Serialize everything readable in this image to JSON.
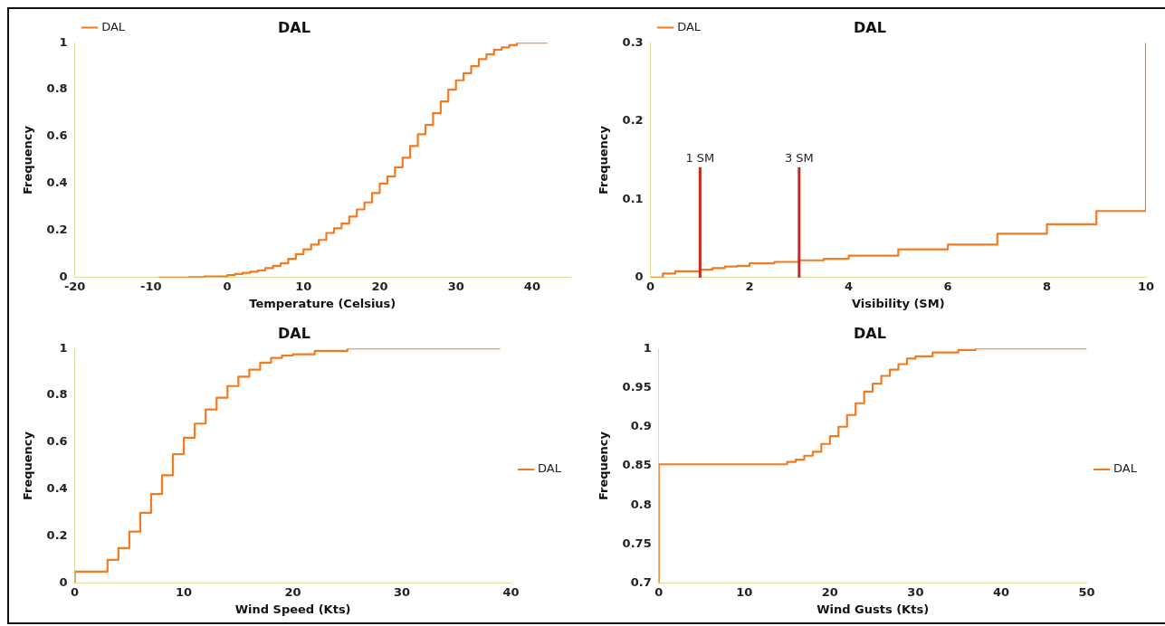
{
  "chart_data": [
    {
      "type": "step",
      "title": "DAL",
      "xlabel": "Temperature (Celsius)",
      "ylabel": "Frequency",
      "xlim": [
        -20,
        45
      ],
      "xticks": [
        -20,
        -10,
        0,
        10,
        20,
        30,
        40
      ],
      "ylim": [
        0,
        1
      ],
      "yticks": [
        0,
        0.2,
        0.4,
        0.6,
        0.8,
        1
      ],
      "legend": "top left",
      "series": [
        {
          "name": "DAL",
          "color": "#f47a20",
          "x": [
            -9,
            -5,
            -3,
            0,
            1,
            2,
            3,
            4,
            5,
            6,
            7,
            8,
            9,
            10,
            11,
            12,
            13,
            14,
            15,
            16,
            17,
            18,
            19,
            20,
            21,
            22,
            23,
            24,
            25,
            26,
            27,
            28,
            29,
            30,
            31,
            32,
            33,
            34,
            35,
            36,
            37,
            38,
            42
          ],
          "values": [
            0,
            0.002,
            0.005,
            0.01,
            0.015,
            0.02,
            0.025,
            0.03,
            0.04,
            0.05,
            0.06,
            0.08,
            0.1,
            0.12,
            0.14,
            0.16,
            0.19,
            0.21,
            0.23,
            0.26,
            0.29,
            0.32,
            0.36,
            0.4,
            0.43,
            0.47,
            0.51,
            0.56,
            0.61,
            0.65,
            0.7,
            0.75,
            0.8,
            0.84,
            0.87,
            0.9,
            0.93,
            0.95,
            0.97,
            0.98,
            0.99,
            1,
            1
          ]
        }
      ]
    },
    {
      "type": "step",
      "title": "DAL",
      "xlabel": "Visibility (SM)",
      "ylabel": "Frequency",
      "xlim": [
        0,
        10
      ],
      "xticks": [
        0,
        2,
        4,
        6,
        8,
        10
      ],
      "ylim": [
        0,
        0.3
      ],
      "yticks": [
        0,
        0.1,
        0.2,
        0.3
      ],
      "legend": "top left",
      "series": [
        {
          "name": "DAL",
          "color": "#f47a20",
          "x": [
            0,
            0.25,
            0.5,
            1,
            1.25,
            1.5,
            1.75,
            2,
            2.5,
            3,
            3.5,
            4,
            5,
            6,
            7,
            8,
            9,
            10
          ],
          "values": [
            0,
            0.005,
            0.008,
            0.01,
            0.012,
            0.014,
            0.015,
            0.018,
            0.02,
            0.022,
            0.024,
            0.028,
            0.036,
            0.042,
            0.056,
            0.068,
            0.085,
            0.3
          ]
        }
      ],
      "ref_lines": [
        {
          "axis": "x",
          "value": 1,
          "label": "1 SM",
          "color": "#c8281e"
        },
        {
          "axis": "x",
          "value": 3,
          "label": "3 SM",
          "color": "#c8281e"
        }
      ]
    },
    {
      "type": "step",
      "title": "DAL",
      "xlabel": "Wind Speed (Kts)",
      "ylabel": "Frequency",
      "xlim": [
        0,
        40
      ],
      "xticks": [
        0,
        10,
        20,
        30,
        40
      ],
      "ylim": [
        0,
        1
      ],
      "yticks": [
        0,
        0.2,
        0.4,
        0.6,
        0.8,
        1
      ],
      "legend": "right",
      "series": [
        {
          "name": "DAL",
          "color": "#f47a20",
          "x": [
            0,
            0,
            3,
            4,
            5,
            6,
            7,
            8,
            9,
            10,
            11,
            12,
            13,
            14,
            15,
            16,
            17,
            18,
            19,
            20,
            22,
            25,
            39
          ],
          "values": [
            0,
            0.05,
            0.1,
            0.15,
            0.22,
            0.3,
            0.38,
            0.46,
            0.55,
            0.62,
            0.68,
            0.74,
            0.79,
            0.84,
            0.88,
            0.91,
            0.94,
            0.96,
            0.97,
            0.975,
            0.99,
            1,
            1
          ]
        }
      ]
    },
    {
      "type": "step",
      "title": "DAL",
      "xlabel": "Wind Gusts (Kts)",
      "ylabel": "Frequency",
      "xlim": [
        0,
        50
      ],
      "xticks": [
        0,
        10,
        20,
        30,
        40,
        50
      ],
      "ylim": [
        0.7,
        1
      ],
      "yticks": [
        0.7,
        0.75,
        0.8,
        0.85,
        0.9,
        0.95,
        1
      ],
      "legend": "right",
      "series": [
        {
          "name": "DAL",
          "color": "#f47a20",
          "x": [
            0,
            0,
            14,
            15,
            16,
            17,
            18,
            19,
            20,
            21,
            22,
            23,
            24,
            25,
            26,
            27,
            28,
            29,
            30,
            32,
            35,
            37,
            50
          ],
          "values": [
            0.7,
            0.852,
            0.852,
            0.855,
            0.858,
            0.863,
            0.868,
            0.878,
            0.888,
            0.9,
            0.915,
            0.93,
            0.945,
            0.955,
            0.965,
            0.973,
            0.98,
            0.987,
            0.99,
            0.995,
            0.998,
            1,
            1
          ]
        }
      ]
    }
  ]
}
